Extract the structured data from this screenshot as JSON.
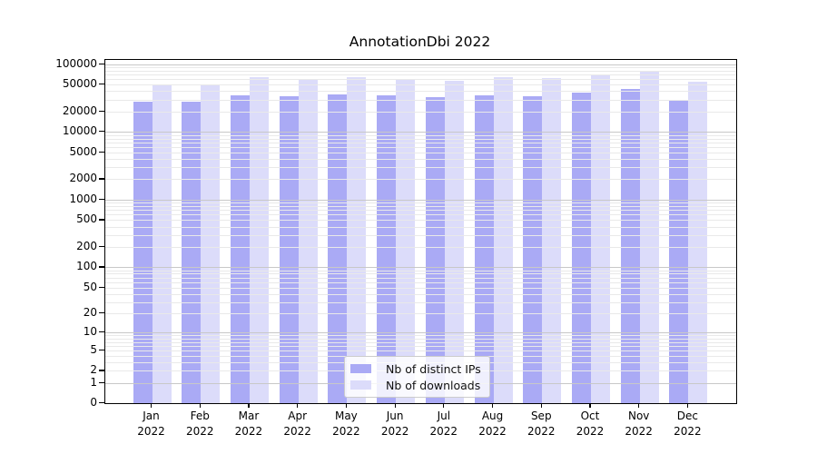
{
  "chart_data": {
    "type": "bar",
    "title": "AnnotationDbi 2022",
    "categories": [
      "Jan",
      "Feb",
      "Mar",
      "Apr",
      "May",
      "Jun",
      "Jul",
      "Aug",
      "Sep",
      "Oct",
      "Nov",
      "Dec"
    ],
    "category_year": "2022",
    "series": [
      {
        "name": "Nb of distinct IPs",
        "key": "distinct-ips",
        "color": "#aaaaf5",
        "values": [
          28000,
          27500,
          34500,
          34000,
          35500,
          34500,
          33000,
          35000,
          34000,
          37500,
          42500,
          30000
        ]
      },
      {
        "name": "Nb of downloads",
        "key": "downloads",
        "color": "#dcdcfa",
        "values": [
          48000,
          49500,
          64000,
          58500,
          63500,
          59500,
          57000,
          63500,
          61500,
          67500,
          78000,
          55000
        ]
      }
    ],
    "yscale": "log1p",
    "ylim": [
      0,
      115000
    ],
    "yticks": [
      0,
      1,
      2,
      5,
      10,
      20,
      50,
      100,
      200,
      500,
      1000,
      2000,
      5000,
      10000,
      20000,
      50000,
      100000
    ],
    "ytick_labels": [
      "0",
      "1",
      "2",
      "5",
      "10",
      "20",
      "50",
      "100",
      "200",
      "500",
      "1000",
      "2000",
      "5000",
      "10000",
      "20000",
      "50000",
      "100000"
    ],
    "major_gridlines": [
      1,
      10,
      100,
      1000,
      10000,
      100000
    ],
    "minor_gridlines": [
      2,
      3,
      4,
      5,
      6,
      7,
      8,
      9,
      20,
      30,
      40,
      50,
      60,
      70,
      80,
      90,
      200,
      300,
      400,
      500,
      600,
      700,
      800,
      900,
      2000,
      3000,
      4000,
      5000,
      6000,
      7000,
      8000,
      9000,
      20000,
      30000,
      40000,
      50000,
      60000,
      70000,
      80000,
      90000
    ],
    "legend": {
      "position": "lower center"
    },
    "grid": true,
    "colors": {
      "axis": "#000000",
      "grid_major": "#c8c8c8",
      "grid_minor": "#e9e9e9",
      "legend_border": "#cccccc",
      "text": "#000000"
    }
  }
}
